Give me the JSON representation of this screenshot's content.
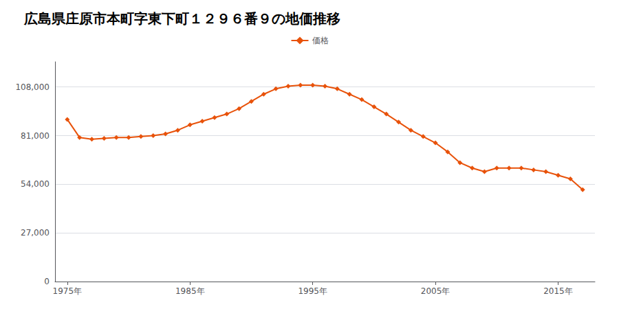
{
  "chart_data": {
    "type": "line",
    "title": "広島県庄原市本町字東下町１２９６番９の地価推移",
    "x": [
      1975,
      1976,
      1977,
      1978,
      1979,
      1980,
      1981,
      1982,
      1983,
      1984,
      1985,
      1986,
      1987,
      1988,
      1989,
      1990,
      1991,
      1992,
      1993,
      1994,
      1995,
      1996,
      1997,
      1998,
      1999,
      2000,
      2001,
      2002,
      2003,
      2004,
      2005,
      2006,
      2007,
      2008,
      2009,
      2010,
      2011,
      2012,
      2013,
      2014,
      2015,
      2016,
      2017
    ],
    "series": [
      {
        "name": "価格",
        "color": "#E8520A",
        "marker": "diamond",
        "values": [
          90000,
          80000,
          79000,
          79500,
          80000,
          80000,
          80500,
          81000,
          82000,
          84000,
          87000,
          89000,
          91000,
          93000,
          96000,
          100000,
          104000,
          107000,
          108500,
          109000,
          109000,
          108500,
          107000,
          104000,
          101000,
          97000,
          93000,
          88500,
          84000,
          80500,
          77000,
          72000,
          66000,
          63000,
          61000,
          63000,
          63000,
          63000,
          62000,
          61000,
          59000,
          57000,
          51000
        ]
      }
    ],
    "xlim": [
      1974,
      2018
    ],
    "xticks": [
      {
        "value": 1975,
        "label": "1975年"
      },
      {
        "value": 1985,
        "label": "1985年"
      },
      {
        "value": 1995,
        "label": "1995年"
      },
      {
        "value": 2005,
        "label": "2005年"
      },
      {
        "value": 2015,
        "label": "2015年"
      }
    ],
    "ylim": [
      0,
      122000
    ],
    "yticks": [
      0,
      {
        "value": 27000,
        "label": "27,000"
      },
      {
        "value": 54000,
        "label": "54,000"
      },
      {
        "value": 81000,
        "label": "81,000"
      },
      {
        "value": 108000,
        "label": "108,000"
      }
    ],
    "grid": true,
    "legend": "top"
  }
}
